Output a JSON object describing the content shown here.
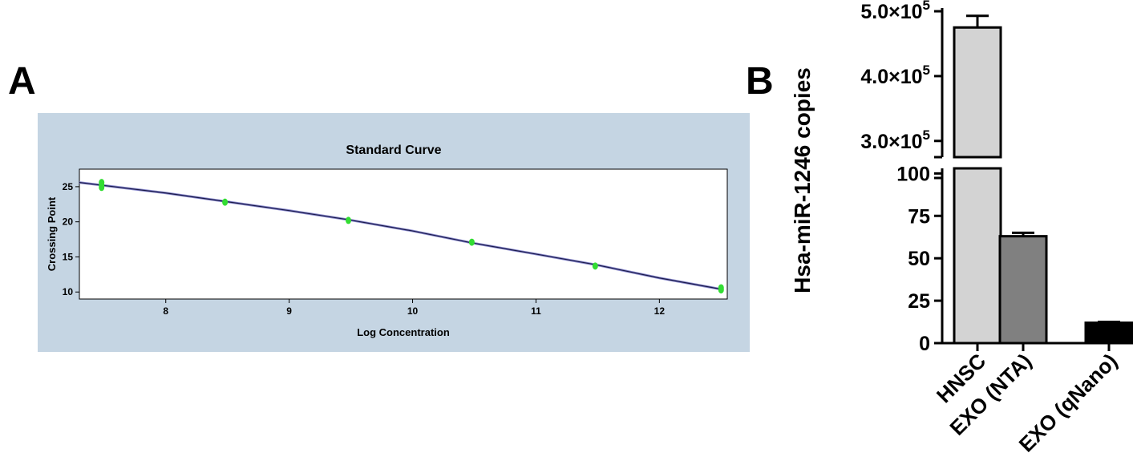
{
  "panels": {
    "a_label": "A",
    "b_label": "B"
  },
  "colors": {
    "panel_a_background": "#c5d5e3",
    "curve_line": "#1a1a4a",
    "curve_shadow": "#8888cc",
    "points": "#33dd33",
    "bar_hnsc": "#d3d3d3",
    "bar_exo_nta": "#808080",
    "bar_exo_qnano": "#000000"
  },
  "chart_data": [
    {
      "type": "line",
      "title": "Standard Curve",
      "xlabel": "Log Concentration",
      "ylabel": "Crossing Point",
      "xlim": [
        7.3,
        12.55
      ],
      "ylim": [
        9,
        27.5
      ],
      "xticks": [
        8,
        9,
        10,
        11,
        12
      ],
      "yticks": [
        10,
        15,
        20,
        25
      ],
      "grid": false,
      "series": [
        {
          "name": "",
          "x": [
            7.3,
            8,
            8.48,
            9,
            9.48,
            10,
            10.48,
            11,
            11.48,
            12,
            12.5
          ],
          "y": [
            25.6,
            24.1,
            22.9,
            21.6,
            20.3,
            18.7,
            17.0,
            15.4,
            13.9,
            12.0,
            10.4
          ]
        }
      ],
      "points": {
        "x": [
          7.48,
          7.48,
          7.48,
          8.48,
          9.48,
          10.48,
          11.48,
          12.5,
          12.5
        ],
        "y": [
          25.6,
          25.2,
          24.9,
          22.8,
          20.2,
          17.1,
          13.7,
          10.6,
          10.3
        ]
      }
    },
    {
      "type": "bar",
      "ylabel": "Hsa-miR-1246 copies",
      "categories": [
        "HNSC",
        "EXO (NTA)",
        "EXO (qNano)"
      ],
      "values": [
        475000,
        63,
        12
      ],
      "errors": [
        18000,
        2,
        0.5
      ],
      "axis_break": true,
      "upper_segment": {
        "range": [
          275000,
          505000
        ],
        "ticks": [
          {
            "value": 300000,
            "mantissa": "3.0×10",
            "exp": "5"
          },
          {
            "value": 400000,
            "mantissa": "4.0×10",
            "exp": "5"
          },
          {
            "value": 500000,
            "mantissa": "5.0×10",
            "exp": "5"
          }
        ]
      },
      "lower_segment": {
        "range": [
          0,
          100
        ],
        "ticks": [
          {
            "value": 0,
            "label": "0"
          },
          {
            "value": 25,
            "label": "25"
          },
          {
            "value": 50,
            "label": "50"
          },
          {
            "value": 75,
            "label": "75"
          },
          {
            "value": 100,
            "label": "100"
          }
        ]
      },
      "grid": false
    }
  ]
}
